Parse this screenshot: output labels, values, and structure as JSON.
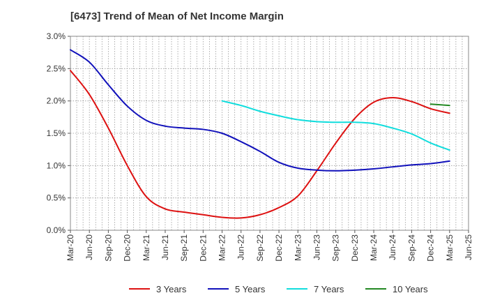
{
  "chart_data": {
    "type": "line",
    "title": "[6473]  Trend of Mean of Net Income Margin",
    "xlabel": "",
    "ylabel": "",
    "x_ticks": [
      "Mar-20",
      "Jun-20",
      "Sep-20",
      "Dec-20",
      "Mar-21",
      "Jun-21",
      "Sep-21",
      "Dec-21",
      "Mar-22",
      "Jun-22",
      "Sep-22",
      "Dec-22",
      "Mar-23",
      "Jun-23",
      "Sep-23",
      "Dec-23",
      "Mar-24",
      "Jun-24",
      "Sep-24",
      "Dec-24",
      "Mar-25",
      "Jun-25"
    ],
    "y_ticks": [
      "0.0%",
      "0.5%",
      "1.0%",
      "1.5%",
      "2.0%",
      "2.5%",
      "3.0%"
    ],
    "ylim": [
      0,
      3.0
    ],
    "grid": true,
    "legend_position": "bottom",
    "series": [
      {
        "name": "3 Years",
        "color": "#dd1111",
        "points": [
          [
            "Mar-20",
            2.47
          ],
          [
            "Jun-20",
            2.1
          ],
          [
            "Sep-20",
            1.58
          ],
          [
            "Dec-20",
            1.0
          ],
          [
            "Mar-21",
            0.52
          ],
          [
            "Jun-21",
            0.33
          ],
          [
            "Sep-21",
            0.28
          ],
          [
            "Dec-21",
            0.24
          ],
          [
            "Mar-22",
            0.2
          ],
          [
            "Jun-22",
            0.19
          ],
          [
            "Sep-22",
            0.24
          ],
          [
            "Dec-22",
            0.35
          ],
          [
            "Mar-23",
            0.53
          ],
          [
            "Jun-23",
            0.92
          ],
          [
            "Sep-23",
            1.35
          ],
          [
            "Dec-23",
            1.73
          ],
          [
            "Mar-24",
            1.98
          ],
          [
            "Jun-24",
            2.05
          ],
          [
            "Sep-24",
            1.99
          ],
          [
            "Dec-24",
            1.88
          ],
          [
            "Mar-25",
            1.81
          ]
        ]
      },
      {
        "name": "5 Years",
        "color": "#1111bb",
        "points": [
          [
            "Mar-20",
            2.79
          ],
          [
            "Jun-20",
            2.6
          ],
          [
            "Sep-20",
            2.25
          ],
          [
            "Dec-20",
            1.92
          ],
          [
            "Mar-21",
            1.7
          ],
          [
            "Jun-21",
            1.61
          ],
          [
            "Sep-21",
            1.58
          ],
          [
            "Dec-21",
            1.56
          ],
          [
            "Mar-22",
            1.5
          ],
          [
            "Jun-22",
            1.37
          ],
          [
            "Sep-22",
            1.22
          ],
          [
            "Dec-22",
            1.05
          ],
          [
            "Mar-23",
            0.96
          ],
          [
            "Jun-23",
            0.93
          ],
          [
            "Sep-23",
            0.92
          ],
          [
            "Dec-23",
            0.93
          ],
          [
            "Mar-24",
            0.95
          ],
          [
            "Jun-24",
            0.98
          ],
          [
            "Sep-24",
            1.01
          ],
          [
            "Dec-24",
            1.03
          ],
          [
            "Mar-25",
            1.07
          ]
        ]
      },
      {
        "name": "7 Years",
        "color": "#11dddd",
        "points": [
          [
            "Mar-22",
            2.0
          ],
          [
            "Jun-22",
            1.93
          ],
          [
            "Sep-22",
            1.84
          ],
          [
            "Dec-22",
            1.77
          ],
          [
            "Mar-23",
            1.71
          ],
          [
            "Jun-23",
            1.68
          ],
          [
            "Sep-23",
            1.67
          ],
          [
            "Dec-23",
            1.67
          ],
          [
            "Mar-24",
            1.65
          ],
          [
            "Jun-24",
            1.58
          ],
          [
            "Sep-24",
            1.49
          ],
          [
            "Dec-24",
            1.35
          ],
          [
            "Mar-25",
            1.24
          ]
        ]
      },
      {
        "name": "10 Years",
        "color": "#228822",
        "points": [
          [
            "Dec-24",
            1.95
          ],
          [
            "Mar-25",
            1.93
          ]
        ]
      }
    ]
  }
}
